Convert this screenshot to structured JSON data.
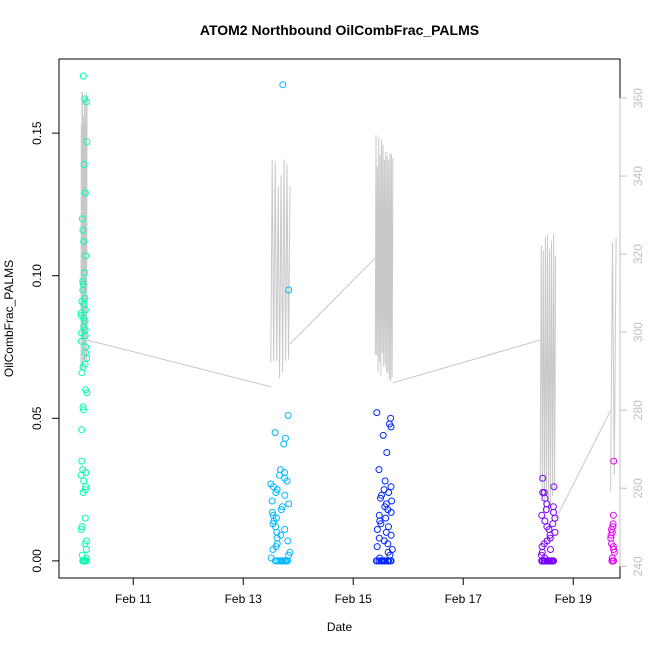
{
  "chart_data": {
    "type": "scatter",
    "title": "ATOM2 Northbound OilCombFrac_PALMS",
    "xlabel": "Date",
    "ylabel": "OilCombFrac_PALMS",
    "x_unit": "days since Feb 10",
    "xlim": [
      9.65,
      19.85
    ],
    "ylim": [
      -0.006,
      0.176
    ],
    "y2lim": [
      237,
      370
    ],
    "x_ticks": [
      {
        "x": 11,
        "label": "Feb 11"
      },
      {
        "x": 13,
        "label": "Feb 13"
      },
      {
        "x": 15,
        "label": "Feb 15"
      },
      {
        "x": 17,
        "label": "Feb 17"
      },
      {
        "x": 19,
        "label": "Feb 19"
      }
    ],
    "y_ticks": [
      {
        "y": 0.0,
        "label": "0.00"
      },
      {
        "y": 0.05,
        "label": "0.05"
      },
      {
        "y": 0.1,
        "label": "0.10"
      },
      {
        "y": 0.15,
        "label": "0.15"
      }
    ],
    "y2_ticks": [
      {
        "y": 240,
        "label": "240"
      },
      {
        "y": 260,
        "label": "260"
      },
      {
        "y": 280,
        "label": "280"
      },
      {
        "y": 300,
        "label": "300"
      },
      {
        "y": 320,
        "label": "320"
      },
      {
        "y": 340,
        "label": "340"
      },
      {
        "y": 360,
        "label": "360"
      }
    ],
    "grid": false,
    "colors": {
      "flight1": "#00ffb3",
      "flight2": "#00b8ff",
      "flight3": "#0028ff",
      "flight4": "#7a00ff",
      "flight5": "#e600ff",
      "line": "#c8c8c8",
      "axis": "#000000",
      "right_axis": "#c0c0c0"
    },
    "flights": [
      {
        "x_start": 10.05,
        "x_end": 10.16,
        "color_key": "flight1",
        "points": [
          0.17,
          0.162,
          0.161,
          0.147,
          0.139,
          0.129,
          0.129,
          0.12,
          0.116,
          0.112,
          0.107,
          0.101,
          0.098,
          0.097,
          0.095,
          0.092,
          0.091,
          0.09,
          0.088,
          0.087,
          0.086,
          0.085,
          0.084,
          0.082,
          0.081,
          0.08,
          0.079,
          0.077,
          0.075,
          0.073,
          0.071,
          0.069,
          0.068,
          0.066,
          0.06,
          0.059,
          0.054,
          0.053,
          0.046,
          0.035,
          0.032,
          0.031,
          0.03,
          0.028,
          0.026,
          0.025,
          0.024,
          0.015,
          0.012,
          0.011,
          0.007,
          0.006,
          0.004,
          0.002,
          0.001,
          0,
          0,
          0,
          0,
          0,
          0,
          0
        ]
      },
      {
        "x_start": 13.5,
        "x_end": 13.85,
        "color_key": "flight2",
        "points": [
          0.167,
          0.095,
          0.051,
          0.045,
          0.043,
          0.041,
          0.032,
          0.031,
          0.03,
          0.029,
          0.028,
          0.027,
          0.026,
          0.025,
          0.024,
          0.023,
          0.021,
          0.02,
          0.019,
          0.018,
          0.017,
          0.016,
          0.015,
          0.014,
          0.013,
          0.012,
          0.011,
          0.01,
          0.009,
          0.008,
          0.007,
          0.006,
          0.005,
          0.004,
          0.003,
          0.002,
          0.001,
          0,
          0,
          0,
          0,
          0,
          0,
          0,
          0,
          0,
          0,
          0,
          0
        ]
      },
      {
        "x_start": 15.42,
        "x_end": 15.72,
        "color_key": "flight3",
        "points": [
          0.052,
          0.05,
          0.048,
          0.047,
          0.044,
          0.038,
          0.032,
          0.028,
          0.026,
          0.025,
          0.024,
          0.023,
          0.022,
          0.021,
          0.02,
          0.019,
          0.018,
          0.017,
          0.016,
          0.015,
          0.014,
          0.013,
          0.012,
          0.011,
          0.01,
          0.009,
          0.008,
          0.007,
          0.006,
          0.005,
          0.004,
          0.003,
          0.002,
          0.001,
          0,
          0,
          0,
          0,
          0,
          0,
          0,
          0,
          0,
          0,
          0,
          0,
          0,
          0,
          0,
          0,
          0,
          0
        ]
      },
      {
        "x_start": 18.42,
        "x_end": 18.68,
        "color_key": "flight4",
        "points": [
          0.029,
          0.026,
          0.024,
          0.024,
          0.022,
          0.02,
          0.019,
          0.018,
          0.017,
          0.016,
          0.015,
          0.014,
          0.013,
          0.012,
          0.011,
          0.01,
          0.009,
          0.008,
          0.007,
          0.006,
          0.005,
          0.004,
          0.003,
          0.002,
          0.001,
          0,
          0,
          0,
          0,
          0,
          0,
          0,
          0,
          0,
          0,
          0,
          0,
          0,
          0,
          0,
          0,
          0,
          0,
          0,
          0,
          0,
          0,
          0,
          0,
          0,
          0
        ]
      },
      {
        "x_start": 19.68,
        "x_end": 19.75,
        "color_key": "flight5",
        "points": [
          0.035,
          0.016,
          0.013,
          0.012,
          0.011,
          0.01,
          0.009,
          0.008,
          0.006,
          0.005,
          0.004,
          0.003,
          0.001,
          0,
          0,
          0
        ]
      }
    ],
    "secondary_series": {
      "name": "",
      "unit_axis": "right",
      "segments": [
        {
          "x_start": 10.05,
          "x_end": 10.16,
          "ymin": 290,
          "ymax": 362,
          "cycles": 9
        },
        {
          "x_start": 13.5,
          "x_end": 13.85,
          "ymin": 286,
          "ymax": 346,
          "cycles": 6
        },
        {
          "x_start": 15.4,
          "x_end": 15.72,
          "ymin": 287,
          "ymax": 351,
          "cycles": 12
        },
        {
          "x_start": 18.4,
          "x_end": 18.68,
          "ymin": 253,
          "ymax": 326,
          "cycles": 7
        },
        {
          "x_start": 19.68,
          "x_end": 19.78,
          "ymin": 256,
          "ymax": 326,
          "cycles": 1
        }
      ],
      "connectors": [
        [
          10.16,
          298,
          13.5,
          286
        ],
        [
          13.85,
          297,
          15.4,
          319
        ],
        [
          15.72,
          287,
          18.4,
          298
        ],
        [
          18.68,
          252,
          19.68,
          280
        ]
      ]
    }
  }
}
